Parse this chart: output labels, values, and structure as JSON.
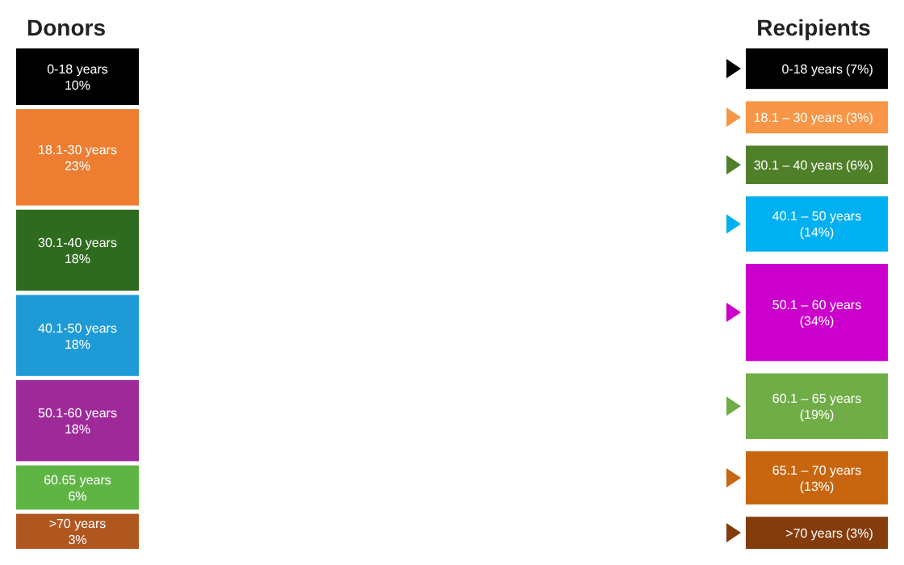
{
  "chart_data": [
    {
      "type": "other",
      "title": "Donors",
      "categories": [
        "0-18 years",
        "18.1-30 years",
        "30.1-40 years",
        "40.1-50 years",
        "50.1-60 years",
        "60.65 years",
        ">70 years"
      ],
      "values": [
        10,
        23,
        18,
        18,
        18,
        6,
        3
      ],
      "value_labels": [
        "10%",
        "23%",
        "18%",
        "18%",
        "18%",
        "6%",
        "3%"
      ],
      "colors": [
        "#000000",
        "#ed7d31",
        "#2e6b1f",
        "#1e9bd7",
        "#9e2a9a",
        "#5fb544",
        "#b0561f"
      ]
    },
    {
      "type": "other",
      "title": "Recipients",
      "categories": [
        "0-18 years",
        "18.1 – 30 years",
        "30.1 – 40 years",
        "40.1 – 50 years",
        "50.1 – 60 years",
        "60.1 – 65 years",
        "65.1 – 70 years",
        ">70 years"
      ],
      "values": [
        7,
        3,
        6,
        14,
        34,
        19,
        13,
        3
      ],
      "value_labels": [
        "(7%)",
        "(3%)",
        "(6%)",
        "(14%)",
        "(34%)",
        "(19%)",
        "(13%)",
        "(3%)"
      ],
      "colors": [
        "#000000",
        "#f79646",
        "#4f7f28",
        "#00b0f0",
        "#cc00cc",
        "#70ad47",
        "#c8650f",
        "#843c0c"
      ]
    }
  ]
}
